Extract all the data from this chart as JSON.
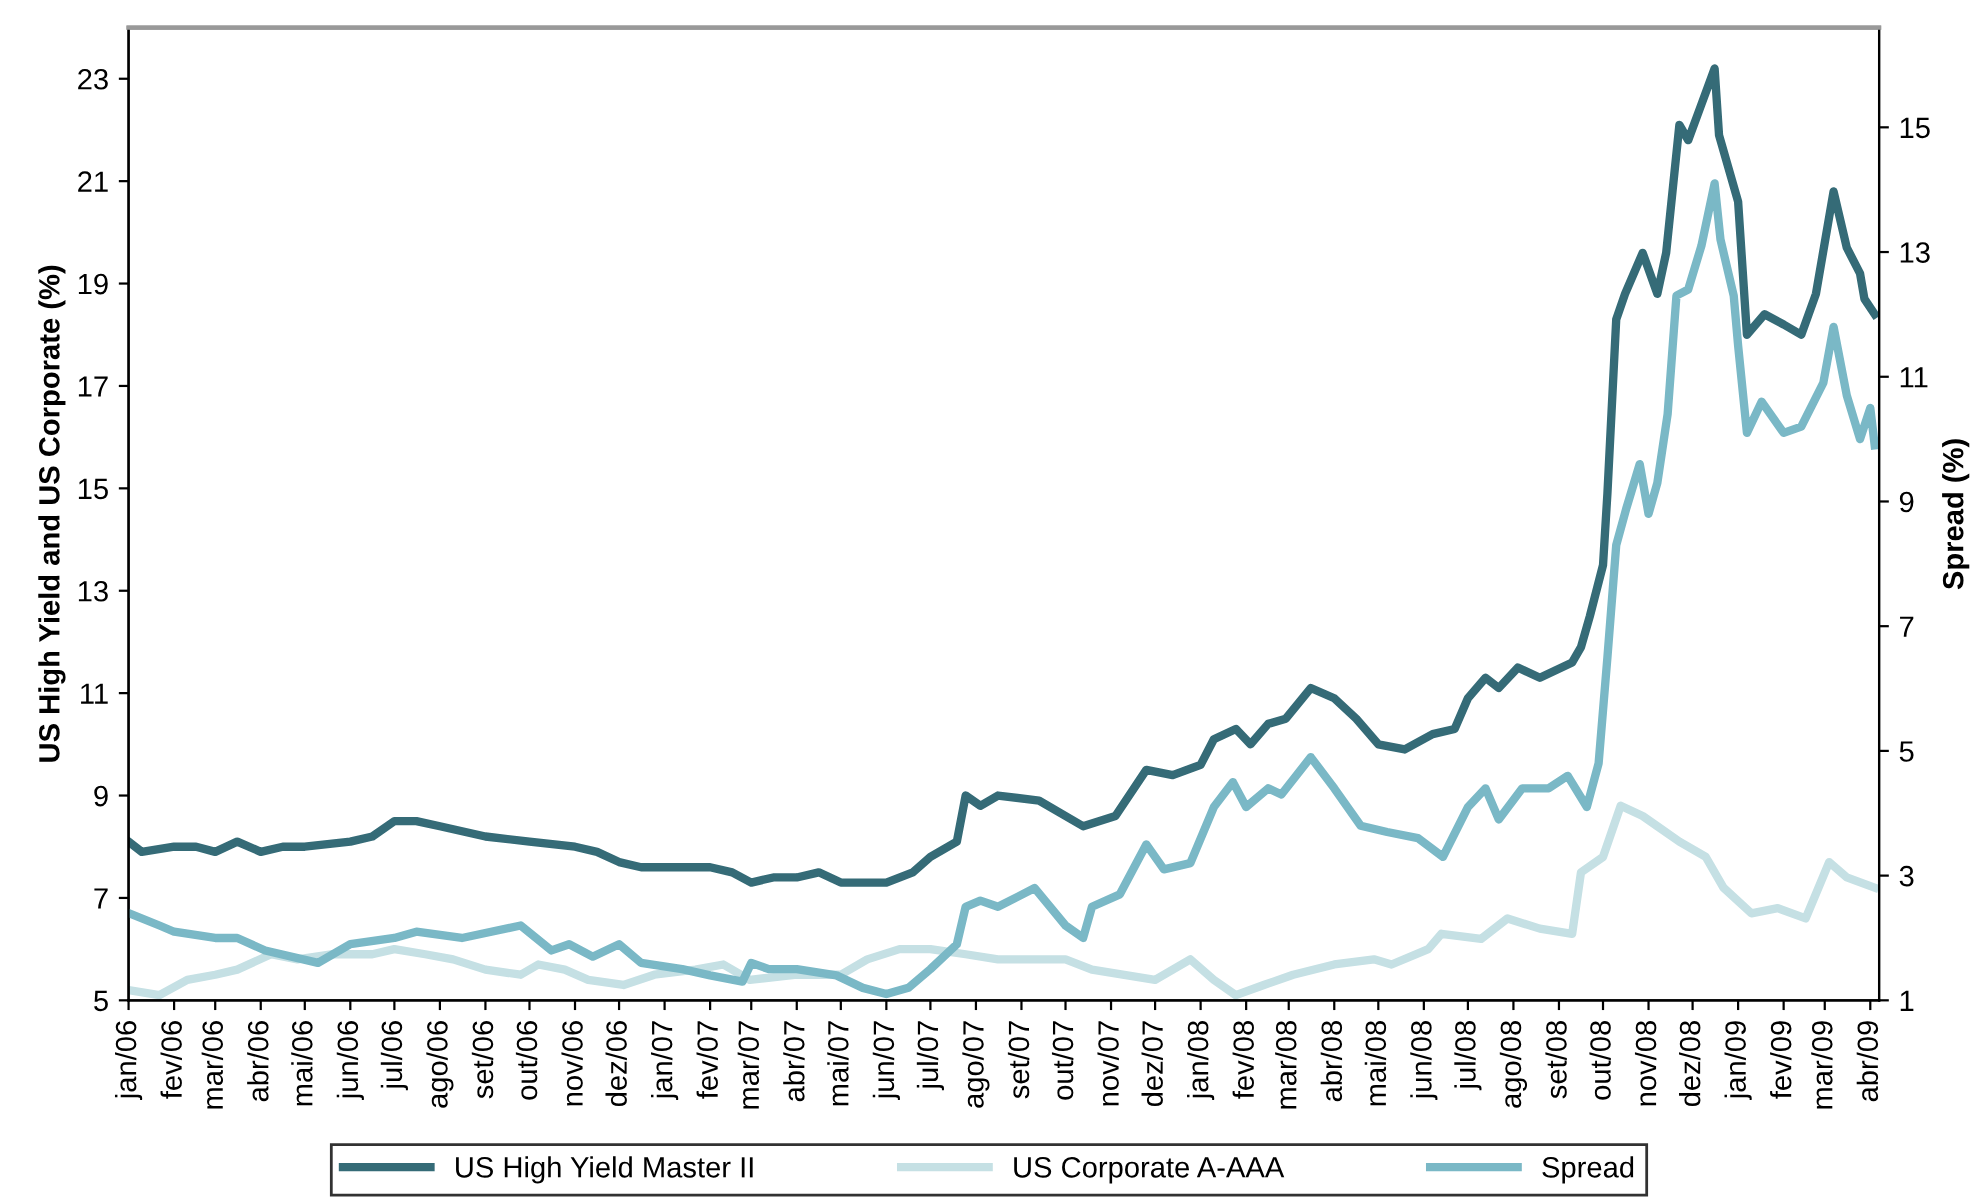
{
  "chart_data": {
    "type": "line",
    "ylabel": "US High Yield and US Corporate (%)",
    "y2label": "Spread (%)",
    "xlim": [
      "2006-01-01",
      "2009-04-07"
    ],
    "xticks": [
      {
        "value": "2006-01",
        "label": "jan/06"
      },
      {
        "value": "2006-02",
        "label": "fev/06"
      },
      {
        "value": "2006-03",
        "label": "mar/06"
      },
      {
        "value": "2006-04",
        "label": "abr/06"
      },
      {
        "value": "2006-05",
        "label": "mai/06"
      },
      {
        "value": "2006-06",
        "label": "jun/06"
      },
      {
        "value": "2006-07",
        "label": "jul/06"
      },
      {
        "value": "2006-08",
        "label": "ago/06"
      },
      {
        "value": "2006-09",
        "label": "set/06"
      },
      {
        "value": "2006-10",
        "label": "out/06"
      },
      {
        "value": "2006-11",
        "label": "nov/06"
      },
      {
        "value": "2006-12",
        "label": "dez/06"
      },
      {
        "value": "2007-01",
        "label": "jan/07"
      },
      {
        "value": "2007-02",
        "label": "fev/07"
      },
      {
        "value": "2007-03",
        "label": "mar/07"
      },
      {
        "value": "2007-04",
        "label": "abr/07"
      },
      {
        "value": "2007-05",
        "label": "mai/07"
      },
      {
        "value": "2007-06",
        "label": "jun/07"
      },
      {
        "value": "2007-07",
        "label": "jul/07"
      },
      {
        "value": "2007-08",
        "label": "ago/07"
      },
      {
        "value": "2007-09",
        "label": "set/07"
      },
      {
        "value": "2007-10",
        "label": "out/07"
      },
      {
        "value": "2007-11",
        "label": "nov/07"
      },
      {
        "value": "2007-12",
        "label": "dez/07"
      },
      {
        "value": "2008-01",
        "label": "jan/08"
      },
      {
        "value": "2008-02",
        "label": "fev/08"
      },
      {
        "value": "2008-03",
        "label": "mar/08"
      },
      {
        "value": "2008-04",
        "label": "abr/08"
      },
      {
        "value": "2008-05",
        "label": "mai/08"
      },
      {
        "value": "2008-06",
        "label": "jun/08"
      },
      {
        "value": "2008-07",
        "label": "jul/08"
      },
      {
        "value": "2008-08",
        "label": "ago/08"
      },
      {
        "value": "2008-09",
        "label": "set/08"
      },
      {
        "value": "2008-10",
        "label": "out/08"
      },
      {
        "value": "2008-11",
        "label": "nov/08"
      },
      {
        "value": "2008-12",
        "label": "dez/08"
      },
      {
        "value": "2009-01",
        "label": "jan/09"
      },
      {
        "value": "2009-02",
        "label": "fev/09"
      },
      {
        "value": "2009-03",
        "label": "mar/09"
      },
      {
        "value": "2009-04",
        "label": "abr/09"
      }
    ],
    "ylim": [
      5,
      24
    ],
    "yticks": [
      5,
      7,
      9,
      11,
      13,
      15,
      17,
      19,
      21,
      23
    ],
    "y2lim": [
      1,
      16.6
    ],
    "y2ticks": [
      1,
      3,
      5,
      7,
      9,
      11,
      13,
      15
    ],
    "grid": false,
    "legend": "bottom",
    "marker": "none",
    "line_style": "solid",
    "series": [
      {
        "name": "US High Yield Master II",
        "color": "#356b77",
        "x": [
          "2006-01-01",
          "2006-01-10",
          "2006-02-01",
          "2006-02-16",
          "2006-03-01",
          "2006-03-16",
          "2006-04-01",
          "2006-04-16",
          "2006-05-01",
          "2006-06-01",
          "2006-06-16",
          "2006-07-01",
          "2006-07-16",
          "2006-08-01",
          "2006-09-01",
          "2006-10-01",
          "2006-11-01",
          "2006-11-16",
          "2006-12-01",
          "2006-12-16",
          "2007-01-01",
          "2007-02-01",
          "2007-02-16",
          "2007-03-01",
          "2007-03-16",
          "2007-04-01",
          "2007-04-16",
          "2007-05-01",
          "2007-06-01",
          "2007-06-19",
          "2007-07-01",
          "2007-07-19",
          "2007-07-25",
          "2007-08-04",
          "2007-08-16",
          "2007-09-13",
          "2007-10-13",
          "2007-11-04",
          "2007-11-25",
          "2007-12-13",
          "2008-01-01",
          "2008-01-10",
          "2008-01-25",
          "2008-02-04",
          "2008-02-16",
          "2008-02-28",
          "2008-03-16",
          "2008-04-01",
          "2008-04-16",
          "2008-05-01",
          "2008-05-19",
          "2008-06-07",
          "2008-06-22",
          "2008-07-01",
          "2008-07-13",
          "2008-07-22",
          "2008-08-04",
          "2008-08-19",
          "2008-09-10",
          "2008-09-16",
          "2008-09-22",
          "2008-10-01",
          "2008-10-04",
          "2008-10-10",
          "2008-10-16",
          "2008-10-28",
          "2008-11-07",
          "2008-11-13",
          "2008-11-22",
          "2008-11-28",
          "2008-12-07",
          "2008-12-16",
          "2008-12-19",
          "2009-01-01",
          "2009-01-07",
          "2009-01-19",
          "2009-02-01",
          "2009-02-13",
          "2009-02-23",
          "2009-03-07",
          "2009-03-16",
          "2009-03-25",
          "2009-03-28",
          "2009-04-04"
        ],
        "values": [
          8.1,
          7.9,
          8.0,
          8.0,
          7.9,
          8.1,
          7.9,
          8.0,
          8.0,
          8.1,
          8.2,
          8.5,
          8.5,
          8.4,
          8.2,
          8.1,
          8.0,
          7.9,
          7.7,
          7.6,
          7.6,
          7.6,
          7.5,
          7.3,
          7.4,
          7.4,
          7.5,
          7.3,
          7.3,
          7.5,
          7.8,
          8.1,
          9.0,
          8.8,
          9.0,
          8.9,
          8.4,
          8.6,
          9.5,
          9.4,
          9.6,
          10.1,
          10.3,
          10.0,
          10.4,
          10.5,
          11.1,
          10.9,
          10.5,
          10.0,
          9.9,
          10.2,
          10.3,
          10.9,
          11.3,
          11.1,
          11.5,
          11.3,
          11.6,
          11.9,
          12.5,
          13.5,
          14.9,
          18.3,
          18.8,
          19.6,
          18.8,
          19.6,
          22.1,
          21.8,
          22.5,
          23.2,
          21.9,
          20.6,
          18.0,
          18.4,
          18.2,
          18.0,
          18.8,
          20.8,
          19.7,
          19.2,
          18.7,
          18.4
        ]
      },
      {
        "name": "US Corporate A-AAA",
        "color": "#c5e0e4",
        "x": [
          "2006-01-01",
          "2006-01-22",
          "2006-02-10",
          "2006-03-01",
          "2006-03-16",
          "2006-04-08",
          "2006-04-26",
          "2006-05-19",
          "2006-06-16",
          "2006-07-01",
          "2006-07-22",
          "2006-08-10",
          "2006-09-01",
          "2006-09-25",
          "2006-10-07",
          "2006-10-25",
          "2006-11-10",
          "2006-12-04",
          "2006-12-25",
          "2007-01-22",
          "2007-02-10",
          "2007-02-28",
          "2007-04-01",
          "2007-05-01",
          "2007-05-19",
          "2007-06-10",
          "2007-07-01",
          "2007-07-25",
          "2007-08-16",
          "2007-09-07",
          "2007-10-01",
          "2007-10-19",
          "2007-12-01",
          "2007-12-25",
          "2008-01-10",
          "2008-01-25",
          "2008-02-13",
          "2008-03-04",
          "2008-04-01",
          "2008-04-28",
          "2008-05-10",
          "2008-06-04",
          "2008-06-13",
          "2008-07-10",
          "2008-07-28",
          "2008-08-19",
          "2008-09-10",
          "2008-09-16",
          "2008-10-01",
          "2008-10-13",
          "2008-10-28",
          "2008-11-07",
          "2008-11-22",
          "2008-12-10",
          "2008-12-22",
          "2009-01-10",
          "2009-01-28",
          "2009-02-16",
          "2009-03-04",
          "2009-03-16",
          "2009-04-04"
        ],
        "values": [
          5.2,
          5.1,
          5.4,
          5.5,
          5.6,
          5.9,
          5.8,
          5.9,
          5.9,
          6.0,
          5.9,
          5.8,
          5.6,
          5.5,
          5.7,
          5.6,
          5.4,
          5.3,
          5.5,
          5.6,
          5.7,
          5.4,
          5.5,
          5.5,
          5.8,
          6.0,
          6.0,
          5.9,
          5.8,
          5.8,
          5.8,
          5.6,
          5.4,
          5.8,
          5.4,
          5.1,
          5.3,
          5.5,
          5.7,
          5.8,
          5.7,
          6.0,
          6.3,
          6.2,
          6.6,
          6.4,
          6.3,
          7.5,
          7.8,
          8.8,
          8.6,
          8.4,
          8.1,
          7.8,
          7.2,
          6.7,
          6.8,
          6.6,
          7.7,
          7.4,
          7.2
        ]
      },
      {
        "name": "Spread",
        "color": "#7ab8c6",
        "axis": "y2",
        "x": [
          "2006-01-01",
          "2006-01-22",
          "2006-02-01",
          "2006-03-01",
          "2006-03-16",
          "2006-04-04",
          "2006-05-10",
          "2006-06-01",
          "2006-07-01",
          "2006-07-16",
          "2006-08-16",
          "2006-09-25",
          "2006-10-16",
          "2006-10-28",
          "2006-11-13",
          "2006-12-01",
          "2006-12-16",
          "2007-01-13",
          "2007-02-01",
          "2007-02-23",
          "2007-03-01",
          "2007-03-13",
          "2007-04-01",
          "2007-04-28",
          "2007-05-16",
          "2007-06-01",
          "2007-06-16",
          "2007-07-01",
          "2007-07-19",
          "2007-07-25",
          "2007-08-04",
          "2007-08-16",
          "2007-09-10",
          "2007-10-01",
          "2007-10-13",
          "2007-10-19",
          "2007-11-07",
          "2007-11-25",
          "2007-12-07",
          "2007-12-25",
          "2008-01-10",
          "2008-01-23",
          "2008-02-01",
          "2008-02-16",
          "2008-02-25",
          "2008-03-16",
          "2008-04-01",
          "2008-04-19",
          "2008-05-07",
          "2008-05-28",
          "2008-06-14",
          "2008-07-01",
          "2008-07-13",
          "2008-07-22",
          "2008-08-07",
          "2008-08-25",
          "2008-09-07",
          "2008-09-20",
          "2008-09-28",
          "2008-10-04",
          "2008-10-10",
          "2008-10-17",
          "2008-10-26",
          "2008-11-01",
          "2008-11-07",
          "2008-11-14",
          "2008-11-20",
          "2008-11-28",
          "2008-12-07",
          "2008-12-16",
          "2008-12-20",
          "2008-12-29",
          "2009-01-01",
          "2009-01-07",
          "2009-01-17",
          "2009-02-01",
          "2009-02-13",
          "2009-02-28",
          "2009-03-07",
          "2009-03-16",
          "2009-03-25",
          "2009-04-01",
          "2009-04-04"
        ],
        "values": [
          2.4,
          2.2,
          2.1,
          2.0,
          2.0,
          1.8,
          1.6,
          1.9,
          2.0,
          2.1,
          2.0,
          2.2,
          1.8,
          1.9,
          1.7,
          1.9,
          1.6,
          1.5,
          1.4,
          1.3,
          1.6,
          1.5,
          1.5,
          1.4,
          1.2,
          1.1,
          1.2,
          1.5,
          1.9,
          2.5,
          2.6,
          2.5,
          2.8,
          2.2,
          2.0,
          2.5,
          2.7,
          3.5,
          3.1,
          3.2,
          4.1,
          4.5,
          4.1,
          4.4,
          4.3,
          4.9,
          4.4,
          3.8,
          3.7,
          3.6,
          3.3,
          4.1,
          4.4,
          3.9,
          4.4,
          4.4,
          4.6,
          4.1,
          4.8,
          6.5,
          8.3,
          8.9,
          9.6,
          8.8,
          9.3,
          10.4,
          12.3,
          12.4,
          13.1,
          14.1,
          13.2,
          12.3,
          11.5,
          10.1,
          10.6,
          10.1,
          10.2,
          10.9,
          11.8,
          10.7,
          10.0,
          10.5,
          9.9
        ]
      }
    ]
  }
}
